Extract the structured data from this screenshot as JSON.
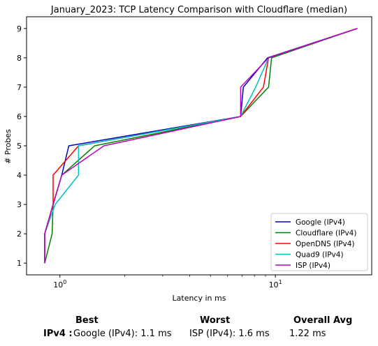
{
  "chart_data": {
    "type": "line",
    "title": "January_2023: TCP Latency Comparison with Cloudflare (median)",
    "xlabel": "Latency in ms",
    "ylabel": "# Probes",
    "xscale": "log",
    "xlim": [
      0.7,
      28
    ],
    "ylim": [
      0.6,
      9.4
    ],
    "xticks": [
      {
        "value": 1,
        "label": "10^0"
      },
      {
        "value": 10,
        "label": "10^1"
      }
    ],
    "yticks": [
      1,
      2,
      3,
      4,
      5,
      6,
      7,
      8,
      9
    ],
    "grid": false,
    "legend_position": "lower-right",
    "series": [
      {
        "name": "Google (IPv4)",
        "color": "#0000bf",
        "x": [
          0.85,
          0.85,
          0.93,
          1.02,
          1.1,
          6.9,
          7.1,
          9.2,
          24
        ],
        "y": [
          1,
          2,
          3,
          4,
          5,
          6,
          7,
          8,
          9
        ]
      },
      {
        "name": "Cloudflare (IPv4)",
        "color": "#008000",
        "x": [
          0.85,
          0.92,
          0.93,
          1.02,
          1.45,
          6.9,
          9.3,
          9.6,
          24
        ],
        "y": [
          1,
          2,
          3,
          4,
          5,
          6,
          7,
          8,
          9
        ]
      },
      {
        "name": "OpenDNS (IPv4)",
        "color": "#ff0000",
        "x": [
          0.85,
          0.85,
          0.93,
          0.93,
          1.22,
          6.9,
          8.8,
          9.3,
          24
        ],
        "y": [
          1,
          2,
          3,
          4,
          5,
          6,
          7,
          8,
          9
        ]
      },
      {
        "name": "Quad9 (IPv4)",
        "color": "#00bfbf",
        "x": [
          0.85,
          0.85,
          0.95,
          1.22,
          1.22,
          6.9,
          8.1,
          9.3,
          24
        ],
        "y": [
          1,
          2,
          3,
          4,
          5,
          6,
          7,
          8,
          9
        ]
      },
      {
        "name": "ISP (IPv4)",
        "color": "#bf00bf",
        "x": [
          0.85,
          0.85,
          0.93,
          1.02,
          1.6,
          6.9,
          6.9,
          9.3,
          24
        ],
        "y": [
          1,
          2,
          3,
          4,
          5,
          6,
          7,
          8,
          9
        ]
      }
    ]
  },
  "summary": {
    "best_header": "Best",
    "worst_header": "Worst",
    "avg_header": "Overall Avg",
    "row_label": "IPv4 :",
    "best_value": "Google (IPv4): 1.1 ms",
    "worst_value": "ISP (IPv4): 1.6 ms",
    "avg_value": "1.22 ms"
  }
}
